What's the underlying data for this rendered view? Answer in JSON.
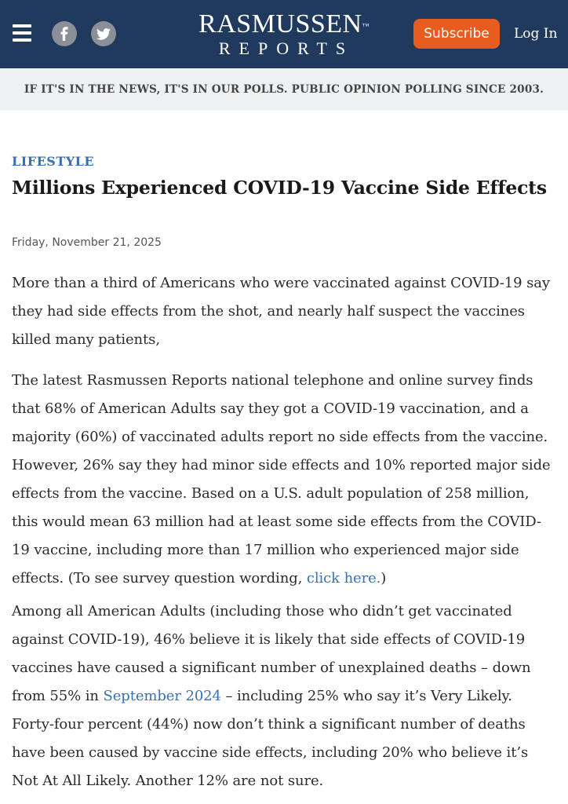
{
  "header": {
    "logo_line1": "RASMUSSEN",
    "logo_tm": "™",
    "logo_line2": "REPORTS",
    "subscribe_label": "Subscribe",
    "login_label": "Log In",
    "social": [
      "facebook-icon",
      "twitter-icon"
    ],
    "colors": {
      "background": "#1f3a5c",
      "subscribe": "#e85d1f"
    }
  },
  "tagline": "IF IT'S IN THE NEWS, IT'S IN OUR POLLS. PUBLIC OPINION POLLING SINCE 2003.",
  "article": {
    "category": "LIFESTYLE",
    "title": "Millions Experienced COVID-19 Vaccine Side Effects",
    "date": "Friday, November 21, 2025",
    "p1": "More than a third of Americans who were vaccinated against COVID-19 say they had side effects from the shot, and nearly half suspect the vaccines killed many patients,",
    "p2_text": "The latest Rasmussen Reports national telephone and online survey finds that 68% of American Adults say they got a COVID-19 vaccination, and a majority (60%) of vaccinated adults report no side effects from the vaccine. However, 26% say they had minor side effects and 10% reported major side effects from the vaccine. Based on a U.S. adult population of 258 million, this would mean 63 million had at least some side effects from the COVID-19 vaccine, including more than 17 million who experienced major side effects. (To see survey question wording, ",
    "p2_link": "click here.",
    "p2_end": ")",
    "p3_text1": "Among all American Adults (including those who didn’t get vaccinated against COVID-19), 46% believe it is likely that side effects of COVID-19 vaccines have caused a significant number of unexplained deaths – down from 55% in ",
    "p3_link": "September 2024",
    "p3_text2": " – including 25% who say it’s Very Likely. Forty-four percent (44%) now don’t think a significant number of deaths have been caused by vaccine side effects, including 20% who believe it’s Not At All Likely. Another 12% are not sure."
  }
}
